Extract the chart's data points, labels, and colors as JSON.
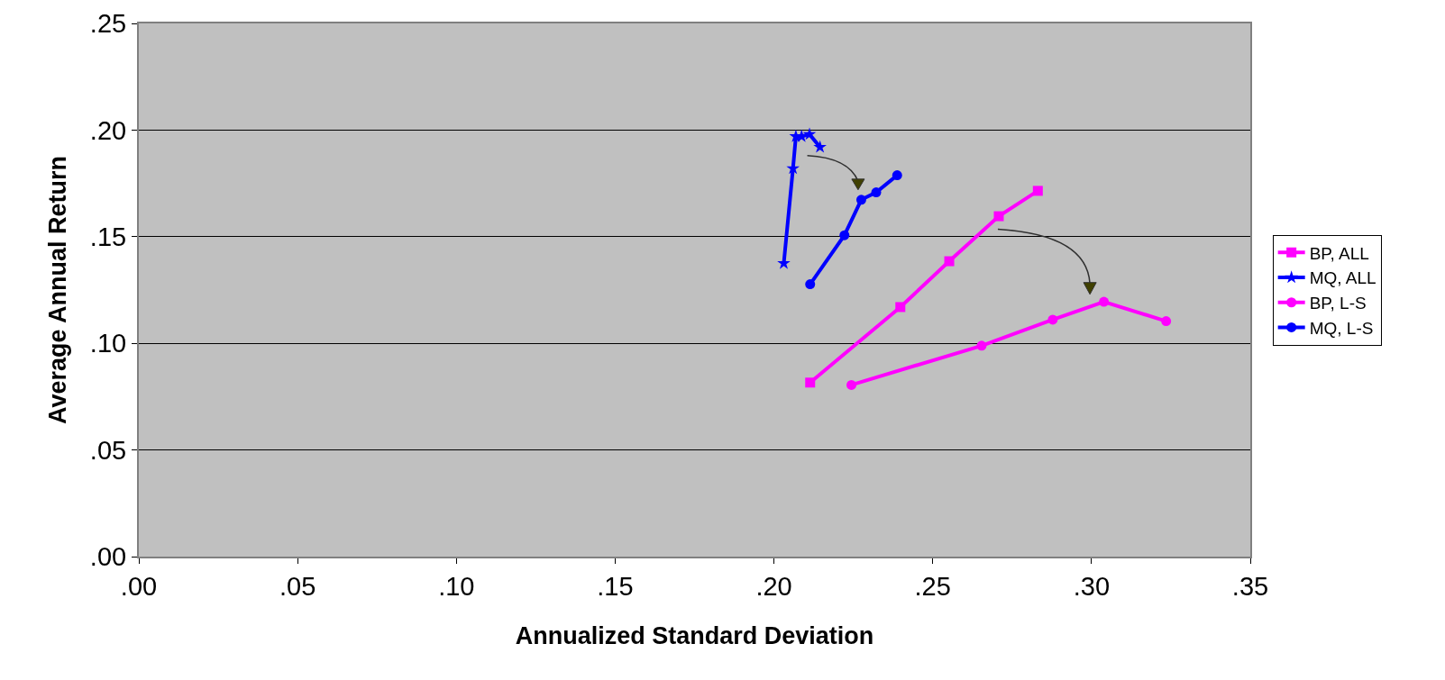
{
  "chart_data": {
    "type": "line",
    "xlabel": "Annualized Standard Deviation",
    "ylabel": "Average Annual Return",
    "xlim": [
      0,
      0.35
    ],
    "xticks": [
      {
        "value": 0,
        "label": ".00"
      },
      {
        "value": 0.05,
        "label": ".05"
      },
      {
        "value": 0.1,
        "label": ".10"
      },
      {
        "value": 0.15,
        "label": ".15"
      },
      {
        "value": 0.2,
        "label": ".20"
      },
      {
        "value": 0.25,
        "label": ".25"
      },
      {
        "value": 0.3,
        "label": ".30"
      },
      {
        "value": 0.35,
        "label": ".35"
      }
    ],
    "ylim": [
      0,
      0.25
    ],
    "yticks": [
      {
        "value": 0,
        "label": ".00"
      },
      {
        "value": 0.05,
        "label": ".05"
      },
      {
        "value": 0.1,
        "label": ".10"
      },
      {
        "value": 0.15,
        "label": ".15"
      },
      {
        "value": 0.2,
        "label": ".20"
      },
      {
        "value": 0.25,
        "label": ".25"
      }
    ],
    "grid": "y",
    "legend": "right",
    "series": [
      {
        "name": "BP, ALL",
        "color": "#ff00ff",
        "marker": "square",
        "x": [
          0.2114,
          0.2398,
          0.2552,
          0.2708,
          0.2831
        ],
        "values": [
          0.0816,
          0.117,
          0.1385,
          0.1596,
          0.1715
        ]
      },
      {
        "name": "MQ, ALL",
        "color": "#0000ff",
        "marker": "star",
        "x": [
          0.2031,
          0.206,
          0.2069,
          0.2087,
          0.2112,
          0.2145
        ],
        "values": [
          0.1375,
          0.182,
          0.197,
          0.197,
          0.198,
          0.192
        ]
      },
      {
        "name": "BP, L-S",
        "color": "#ff00ff",
        "marker": "circle",
        "x": [
          0.2244,
          0.2654,
          0.2878,
          0.3039,
          0.3235
        ],
        "values": [
          0.0805,
          0.0989,
          0.1111,
          0.1195,
          0.1104
        ]
      },
      {
        "name": "MQ, L-S",
        "color": "#0000ff",
        "marker": "circle",
        "x": [
          0.2114,
          0.2222,
          0.2275,
          0.2322,
          0.2388
        ],
        "values": [
          0.1277,
          0.1507,
          0.1673,
          0.1708,
          0.1788
        ]
      }
    ]
  }
}
